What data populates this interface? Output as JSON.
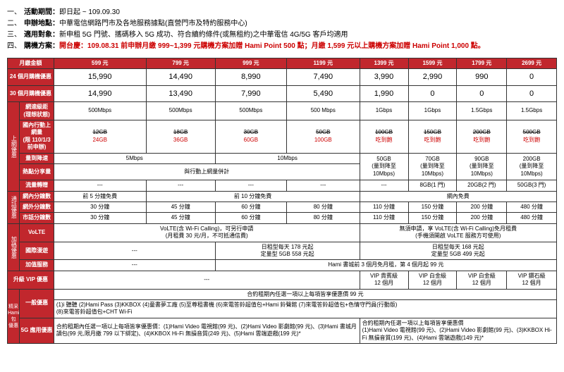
{
  "headers": {
    "li1_num": "一、",
    "li1_label": "活動期間：",
    "li1_text": "即日起 ~ 109.09.30",
    "li2_num": "二、",
    "li2_label": "申辦地點：",
    "li2_text": "中華電信網路門市及各地服務據點(直營門市及特約服務中心)",
    "li3_num": "三、",
    "li3_label": "適用對象：",
    "li3_text": "新申租 5G 門號、攜碼移入 5G 成功、符合續約條件(或無租約)之中華電信 4G/5G 客戶均適用",
    "li4_num": "四、",
    "li4_label": "購機方案：",
    "li4_text": "開台慶：109.08.31 前申辦月繳 999~1,399 元購機方案加贈 Hami Point 500 點；月繳 1,599 元以上購機方案加贈 Hami Point 1,000 點。"
  },
  "table": {
    "col_fee": "月繳金額",
    "fees": [
      "599 元",
      "799 元",
      "999 元",
      "1199 元",
      "1399 元",
      "1599 元",
      "1799 元",
      "2699 元"
    ],
    "row24_label": "24 個月購機優惠",
    "row24": [
      "15,990",
      "14,490",
      "8,990",
      "7,490",
      "3,990",
      "2,990",
      "990",
      "0"
    ],
    "row30_label": "30 個月購機優惠",
    "row30": [
      "14,990",
      "13,490",
      "7,990",
      "5,490",
      "1,990",
      "0",
      "0",
      "0"
    ],
    "side_net": "上網優惠",
    "speed_label": "網速級距\n(理想狀態)",
    "speed": [
      "500Mbps",
      "500Mbps",
      "500Mbps",
      "500 Mbps",
      "1Gbps",
      "1Gbps",
      "1.5Gbps",
      "1.5Gbps"
    ],
    "data_label": "國內行動上網量\n(限 110/1/3 前申辦)",
    "data_strike": [
      "12GB",
      "18GB",
      "30GB",
      "50GB",
      "100GB",
      "150GB",
      "200GB",
      "500GB"
    ],
    "data_red": [
      "24GB",
      "36GB",
      "60GB",
      "100GB",
      "吃到飽",
      "吃到飽",
      "吃到飽",
      "吃到飽"
    ],
    "throttle_label": "量到降速",
    "throttle_a": "5Mbps",
    "throttle_b": "10Mbps",
    "hotspot_label": "熱點分享量",
    "hotspot_a": "與行動上網量併計",
    "hotspot_b": [
      "50GB\n(量到降至\n10Mbps)",
      "70GB\n(量到降至\n10Mbps)",
      "90GB\n(量到降至\n10Mbps)",
      "200GB\n(量到降至\n10Mbps)"
    ],
    "transfer_label": "流量轉贈",
    "transfer": [
      "---",
      "---",
      "---",
      "---",
      "---",
      "8GB(1 門)",
      "20GB(2 門)",
      "50GB(3 門)"
    ],
    "side_call": "通話優惠",
    "innet_label": "網內分鐘數",
    "innet_a": "前 5 分鐘免費",
    "innet_b": "前 10 分鐘免費",
    "innet_c": "網內免費",
    "outnet_label": "網外分鐘數",
    "outnet": [
      "30 分鐘",
      "45 分鐘",
      "60 分鐘",
      "80 分鐘",
      "110 分鐘",
      "150 分鐘",
      "200 分鐘",
      "480 分鐘"
    ],
    "city_label": "市話分鐘數",
    "city": [
      "30 分鐘",
      "45 分鐘",
      "60 分鐘",
      "80 分鐘",
      "110 分鐘",
      "150 分鐘",
      "200 分鐘",
      "480 分鐘"
    ],
    "side_add": "加碼優惠",
    "volte_label": "VoLTE",
    "volte_a": "VoLTE(含 Wi-Fi Calling)，可另行申請\n(月租費 30 元/月，不可抵通信費)",
    "volte_b": "無須申請，享 VoLTE(含 Wi-Fi Calling)免月租費\n(手機須開啟 VoLTE 服務方可使用)",
    "roam_label": "國際漫遊",
    "roam_a": "---",
    "roam_b": "日租型每天 178 元起\n定量型 5GB 558 元起",
    "roam_c": "日租型每天 168 元起\n定量型 5GB 499 元起",
    "svc_label": "加值服務",
    "svc_a": "---",
    "svc_b": "Hami 書城前 3 個月免月租，第 4 個月起 99 元",
    "vip_label": "升級 VIP 優惠",
    "vip_a": "---",
    "vip": [
      "VIP 貴賓級\n12 個月",
      "VIP 白金級\n12 個月",
      "VIP 白金級\n12 個月",
      "VIP 鑽石級\n12 個月"
    ],
    "side_hami": "精采\nHami 包\n優惠",
    "gen_label": "一般優惠",
    "gen_a": "合約租期內任選一項以上每項皆享優惠價 99 元",
    "gen_b": "(1)i 聽聽  (2)Hami Pass  (3)KKBOX  (4)童書夢工廠  (5)至尊租書機  (6)來電答鈴超值包+Hami 鈴聲館  (7)來電答鈴超值包+色情守門員(行動版)\n(8)來電答鈴超值包+CHT Wi-Fi",
    "fiveg_label": "5G 應用優惠",
    "fiveg_a": "合約租期內任選一項以上每項皆享優惠價：(1)Hami Video 電視館(99 元)、(2)Hami Video 影劇館(99 元)、(3)Hami 書城月讀包(99 元,限月繳 799 以下綁定)、(4)KKBOX Hi-Fi 無損音質(249 元)、(5)Hami 雲端遊戲(199 元)*",
    "fiveg_b": "合約租期內任選一項以上每項皆享優惠價\n(1)Hami Video 電視館(99 元)、(2)Hami Video 影劇館(99 元)、(3)KKBOX Hi-Fi 無損音質(199 元)、(4)Hami 雲端遊戲(149 元)*"
  }
}
